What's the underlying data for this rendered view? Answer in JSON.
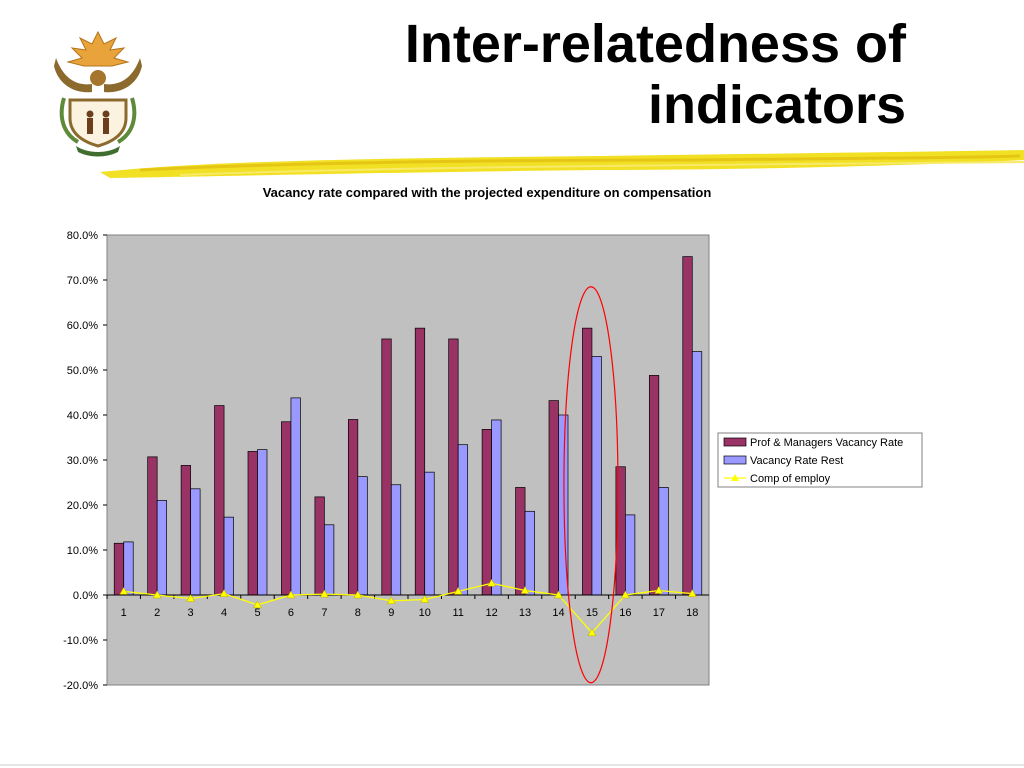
{
  "slide": {
    "title_line1": "Inter-relatedness of",
    "title_line2": "indicators"
  },
  "colors": {
    "plot_background": "#c0c0c0",
    "prof_series": "#993366",
    "rest_series": "#9999ff",
    "comp_series": "#ffff00",
    "highlight_ellipse": "#ff0000",
    "underline_brush": "#f2e024"
  },
  "chart_data": {
    "type": "bar",
    "title": "Vacancy rate compared with the projected expenditure on compensation",
    "xlabel": "",
    "ylabel": "",
    "categories": [
      "1",
      "2",
      "3",
      "4",
      "5",
      "6",
      "7",
      "8",
      "9",
      "10",
      "11",
      "12",
      "13",
      "14",
      "15",
      "16",
      "17",
      "18"
    ],
    "ylim": [
      -20,
      80
    ],
    "yticks": [
      "80.0%",
      "70.0%",
      "60.0%",
      "50.0%",
      "40.0%",
      "30.0%",
      "20.0%",
      "10.0%",
      "0.0%",
      "-10.0%",
      "-20.0%"
    ],
    "grid": false,
    "legend_position": "right",
    "series": [
      {
        "name": "Prof & Managers Vacancy Rate",
        "type": "bar",
        "values": [
          11.5,
          30.7,
          28.8,
          42.1,
          31.9,
          38.5,
          21.8,
          39.0,
          56.9,
          59.3,
          56.9,
          36.8,
          23.9,
          43.2,
          59.3,
          28.5,
          48.8,
          75.2
        ]
      },
      {
        "name": "Vacancy Rate Rest",
        "type": "bar",
        "values": [
          11.8,
          21.0,
          23.6,
          17.3,
          32.3,
          43.8,
          15.6,
          26.3,
          24.5,
          27.3,
          33.4,
          38.9,
          18.6,
          40.0,
          53.0,
          17.8,
          23.9,
          54.1
        ]
      },
      {
        "name": "Comp of employ",
        "type": "line",
        "values": [
          0.8,
          0.0,
          -0.8,
          0.3,
          -2.2,
          0.0,
          0.2,
          0.0,
          -1.3,
          -1.0,
          0.8,
          2.6,
          1.0,
          0.0,
          -8.4,
          0.0,
          1.0,
          0.3
        ]
      }
    ],
    "annotations": [
      {
        "type": "ellipse",
        "category": "15",
        "y_range": [
          -19.5,
          68.5
        ]
      }
    ]
  }
}
